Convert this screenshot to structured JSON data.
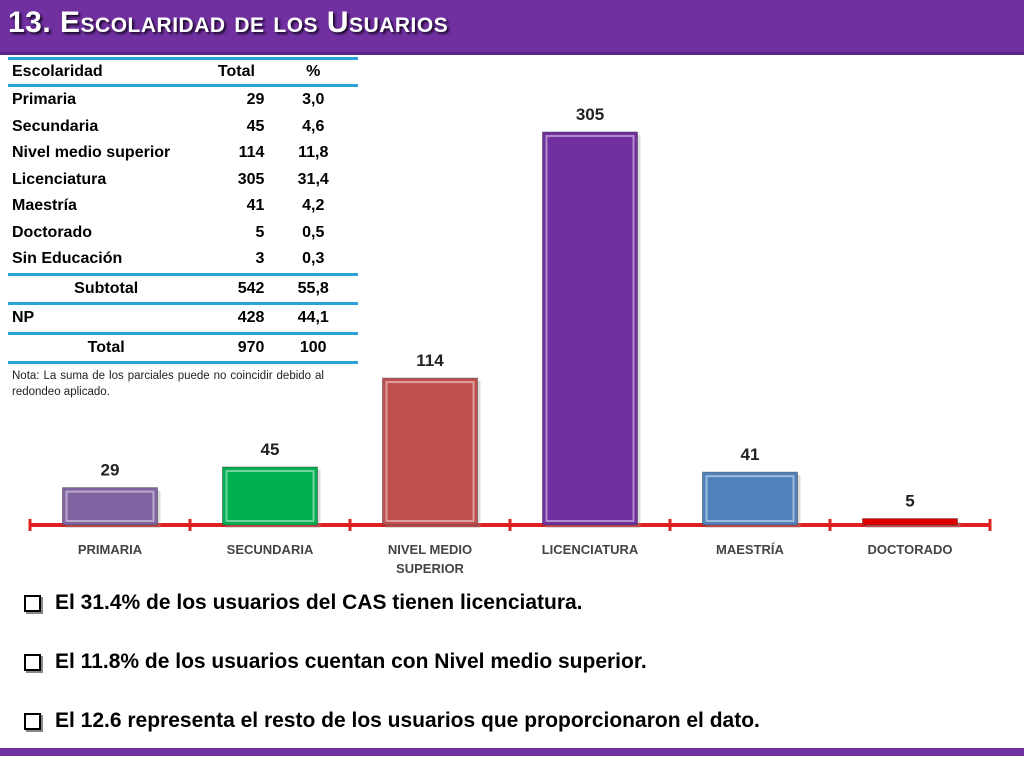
{
  "slide": {
    "title": "13. Escolaridad de los Usuarios",
    "accent_color": "#7030a0",
    "table_line_color": "#29a3d9"
  },
  "table": {
    "headers": [
      "Escolaridad",
      "Total",
      "%"
    ],
    "rows": [
      {
        "label": "Primaria",
        "total": "29",
        "pct": "3,0"
      },
      {
        "label": "Secundaria",
        "total": "45",
        "pct": "4,6"
      },
      {
        "label": "Nivel medio superior",
        "total": "114",
        "pct": "11,8"
      },
      {
        "label": "Licenciatura",
        "total": "305",
        "pct": "31,4"
      },
      {
        "label": "Maestría",
        "total": "41",
        "pct": "4,2"
      },
      {
        "label": "Doctorado",
        "total": "5",
        "pct": "0,5"
      },
      {
        "label": "Sin Educación",
        "total": "3",
        "pct": "0,3"
      }
    ],
    "subtotal": {
      "label": "Subtotal",
      "total": "542",
      "pct": "55,8"
    },
    "np": {
      "label": "NP",
      "total": "428",
      "pct": "44,1"
    },
    "grand_total": {
      "label": "Total",
      "total": "970",
      "pct": "100"
    },
    "note": "Nota: La suma de los parciales puede no coincidir debido al redondeo aplicado."
  },
  "chart_data": {
    "type": "bar",
    "categories": [
      "PRIMARIA",
      "SECUNDARIA",
      "NIVEL MEDIO SUPERIOR",
      "LICENCIATURA",
      "MAESTRÍA",
      "DOCTORADO"
    ],
    "values": [
      29,
      45,
      114,
      305,
      41,
      5
    ],
    "bar_colors": [
      "#8064a2",
      "#00b050",
      "#c0504d",
      "#7030a0",
      "#4f81bd",
      "#e00000"
    ],
    "data_labels": [
      "29",
      "45",
      "114",
      "305",
      "41",
      "5"
    ],
    "axis_color": "#e02020",
    "ylim": [
      0,
      320
    ],
    "title": "",
    "xlabel": "",
    "ylabel": ""
  },
  "bullets": [
    "El 31.4% de los usuarios del CAS tienen licenciatura.",
    "El 11.8% de los usuarios cuentan con Nivel medio superior.",
    "El  12.6 representa el resto de los usuarios que proporcionaron el dato."
  ]
}
